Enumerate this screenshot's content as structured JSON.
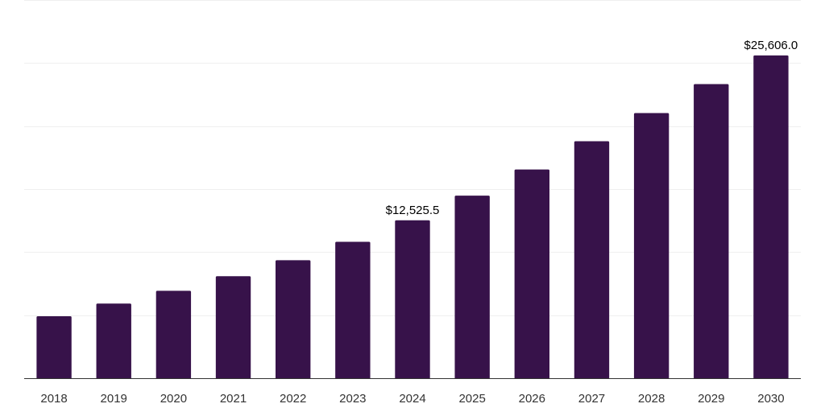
{
  "chart_data": {
    "type": "bar",
    "categories": [
      "2018",
      "2019",
      "2020",
      "2021",
      "2022",
      "2023",
      "2024",
      "2025",
      "2026",
      "2027",
      "2028",
      "2029",
      "2030"
    ],
    "values": [
      4914,
      5918,
      6937,
      8089,
      9360,
      10823,
      12525.5,
      14478,
      16557,
      18796,
      21031,
      23333,
      25606.0
    ],
    "data_labels": [
      {
        "index": 6,
        "text": "$12,525.5"
      },
      {
        "index": 12,
        "text": "$25,606.0"
      }
    ],
    "title": "",
    "xlabel": "",
    "ylabel": "",
    "ylim": [
      0,
      30000
    ],
    "y_gridlines": [
      5000,
      10000,
      15000,
      20000,
      25000,
      30000
    ],
    "grid": true,
    "legend": "none",
    "colors": {
      "bar": "#37124a",
      "gridline": "#efefef",
      "axis": "#333333"
    }
  }
}
